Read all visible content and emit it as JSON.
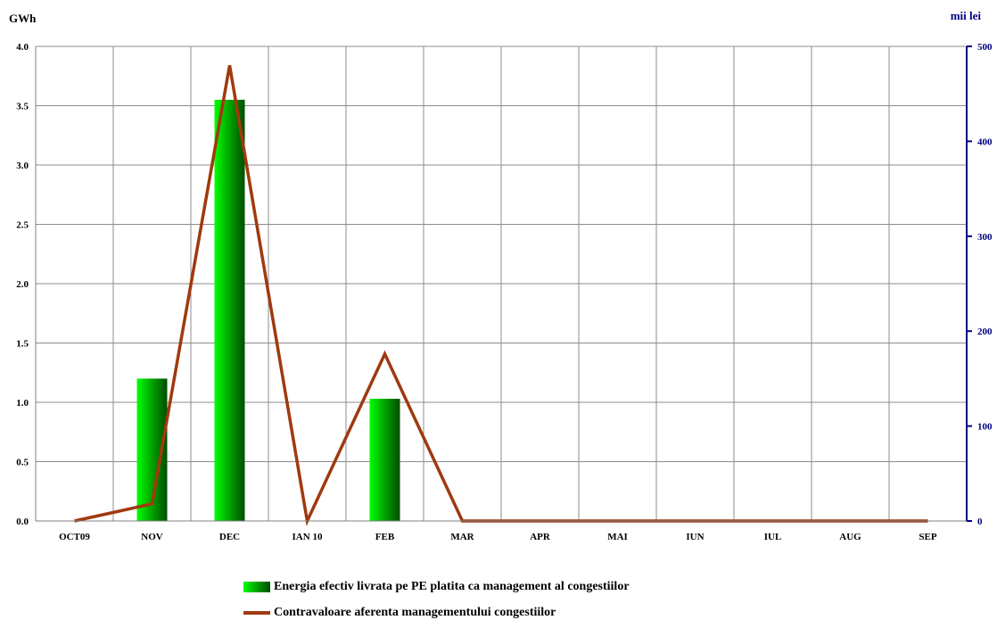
{
  "chart_data": {
    "type": "bar+line",
    "left_unit": "GWh",
    "right_unit": "mii lei",
    "categories": [
      "OCT09",
      "NOV",
      "DEC",
      "IAN 10",
      "FEB",
      "MAR",
      "APR",
      "MAI",
      "IUN",
      "IUL",
      "AUG",
      "SEP"
    ],
    "series": [
      {
        "name": "Energia efectiv livrata pe PE platita ca management al congestiilor",
        "type": "bar",
        "axis": "left",
        "values": [
          0,
          1.2,
          3.55,
          0,
          1.03,
          0,
          0,
          0,
          0,
          0,
          0,
          0
        ]
      },
      {
        "name": "Contravaloare aferenta managementului congestiilor",
        "type": "line",
        "axis": "right",
        "values": [
          0,
          18,
          480,
          0,
          176,
          0,
          0,
          0,
          0,
          0,
          0,
          0
        ]
      }
    ],
    "ylim_left": [
      0,
      4
    ],
    "ylim_right": [
      0,
      500
    ],
    "yticks_left": [
      "0.0",
      "0.5",
      "1.0",
      "1.5",
      "2.0",
      "2.5",
      "3.0",
      "3.5",
      "4.0"
    ],
    "yticks_right": [
      "0",
      "100",
      "200",
      "300",
      "400",
      "500"
    ],
    "grid": true,
    "legend_position": "bottom",
    "colors": {
      "bar_light": "#00ff00",
      "bar_dark": "#004d00",
      "line": "#a0390f",
      "right_axis": "#000080"
    }
  }
}
